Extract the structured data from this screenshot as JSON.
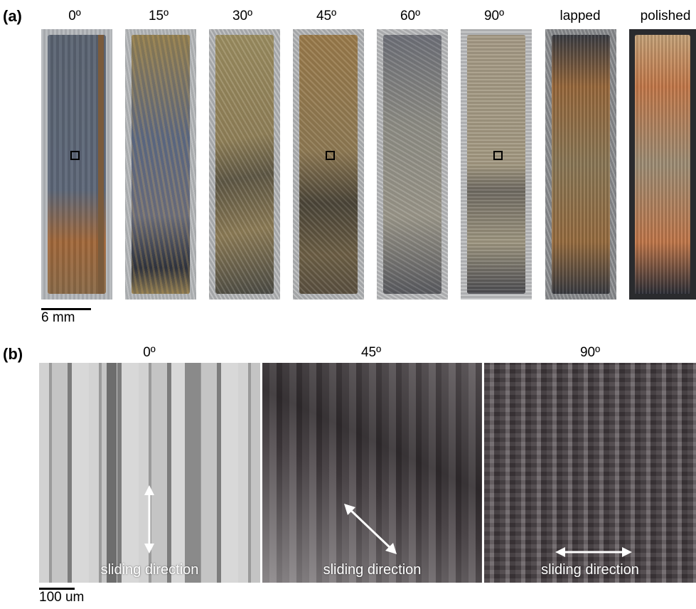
{
  "panel_a": {
    "label": "(a)",
    "samples": [
      {
        "angle": "0º"
      },
      {
        "angle": "15º"
      },
      {
        "angle": "30º"
      },
      {
        "angle": "45º"
      },
      {
        "angle": "60º"
      },
      {
        "angle": "90º"
      },
      {
        "angle": "lapped"
      },
      {
        "angle": "polished"
      }
    ],
    "scale_bar": "6 mm"
  },
  "panel_b": {
    "label": "(b)",
    "images": [
      {
        "angle": "0º",
        "direction_label": "sliding direction"
      },
      {
        "angle": "45º",
        "direction_label": "sliding direction"
      },
      {
        "angle": "90º",
        "direction_label": "sliding direction"
      }
    ],
    "scale_bar": "100 um"
  }
}
